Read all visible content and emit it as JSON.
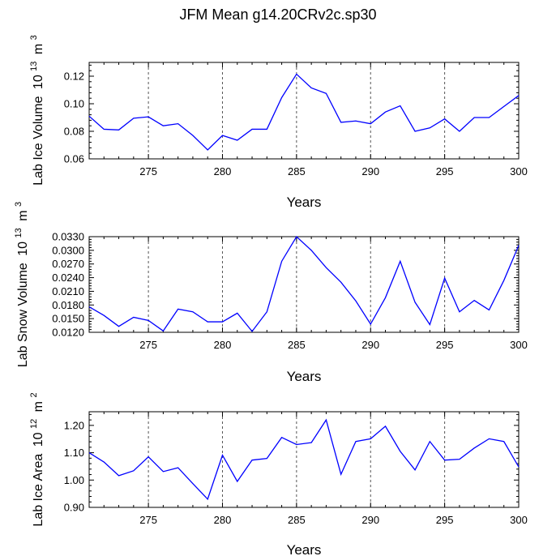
{
  "title": "JFM Mean g14.20CRv2c.sp30",
  "line_color": "#0000ff",
  "chart_data": [
    {
      "type": "line",
      "xlabel": "Years",
      "ylabel": "Lab Ice Volume",
      "yunit_base": "10",
      "yunit_exp": "13",
      "yunit_label": "m",
      "yunit_label_exp": "3",
      "xlim": [
        271,
        300
      ],
      "ylim": [
        0.06,
        0.13
      ],
      "xticks": [
        "275",
        "280",
        "285",
        "290",
        "295",
        "300"
      ],
      "yticks": [
        "0.06",
        "0.08",
        "0.10",
        "0.12"
      ],
      "x": [
        271,
        272,
        273,
        274,
        275,
        276,
        277,
        278,
        279,
        280,
        281,
        282,
        283,
        284,
        285,
        286,
        287,
        288,
        289,
        290,
        291,
        292,
        293,
        294,
        295,
        296,
        297,
        298,
        299,
        300
      ],
      "values": [
        0.091,
        0.0815,
        0.081,
        0.0895,
        0.0905,
        0.084,
        0.0855,
        0.077,
        0.0665,
        0.077,
        0.0735,
        0.0815,
        0.0815,
        0.1045,
        0.1215,
        0.1115,
        0.1075,
        0.0865,
        0.0875,
        0.0855,
        0.094,
        0.0985,
        0.08,
        0.0825,
        0.089,
        0.08,
        0.09,
        0.09,
        0.098,
        0.106
      ],
      "grid": "dashed vertical lines at x ticks 275-295"
    },
    {
      "type": "line",
      "xlabel": "Years",
      "ylabel": "Lab Snow Volume",
      "yunit_base": "10",
      "yunit_exp": "13",
      "yunit_label": "m",
      "yunit_label_exp": "3",
      "xlim": [
        271,
        300
      ],
      "ylim": [
        0.012,
        0.033
      ],
      "xticks": [
        "275",
        "280",
        "285",
        "290",
        "295",
        "300"
      ],
      "yticks": [
        "0.0120",
        "0.0150",
        "0.0180",
        "0.0210",
        "0.0240",
        "0.0270",
        "0.0300",
        "0.0330"
      ],
      "x": [
        271,
        272,
        273,
        274,
        275,
        276,
        277,
        278,
        279,
        280,
        281,
        282,
        283,
        284,
        285,
        286,
        287,
        288,
        289,
        290,
        291,
        292,
        293,
        294,
        295,
        296,
        297,
        298,
        299,
        300
      ],
      "values": [
        0.0176,
        0.0157,
        0.0133,
        0.0153,
        0.0146,
        0.0123,
        0.0171,
        0.0165,
        0.0143,
        0.0143,
        0.0162,
        0.0122,
        0.0165,
        0.0276,
        0.033,
        0.03,
        0.0262,
        0.023,
        0.0189,
        0.0138,
        0.0196,
        0.0276,
        0.0186,
        0.0137,
        0.0239,
        0.0165,
        0.019,
        0.0169,
        0.0234,
        0.0311
      ],
      "grid": "dashed vertical lines at x ticks 275-295"
    },
    {
      "type": "line",
      "xlabel": "Years",
      "ylabel": "Lab Ice Area",
      "yunit_base": "10",
      "yunit_exp": "12",
      "yunit_label": "m",
      "yunit_label_exp": "2",
      "xlim": [
        271,
        300
      ],
      "ylim": [
        0.9,
        1.25
      ],
      "xticks": [
        "275",
        "280",
        "285",
        "290",
        "295",
        "300"
      ],
      "yticks": [
        "0.90",
        "1.00",
        "1.10",
        "1.20"
      ],
      "x": [
        271,
        272,
        273,
        274,
        275,
        276,
        277,
        278,
        279,
        280,
        281,
        282,
        283,
        284,
        285,
        286,
        287,
        288,
        289,
        290,
        291,
        292,
        293,
        294,
        295,
        296,
        297,
        298,
        299,
        300
      ],
      "values": [
        1.1,
        1.066,
        1.016,
        1.034,
        1.085,
        1.031,
        1.045,
        0.987,
        0.93,
        1.091,
        0.995,
        1.073,
        1.079,
        1.156,
        1.13,
        1.137,
        1.22,
        1.021,
        1.141,
        1.151,
        1.197,
        1.105,
        1.037,
        1.141,
        1.073,
        1.076,
        1.117,
        1.151,
        1.141,
        1.048
      ],
      "grid": "dashed vertical lines at x ticks 275-295"
    }
  ]
}
